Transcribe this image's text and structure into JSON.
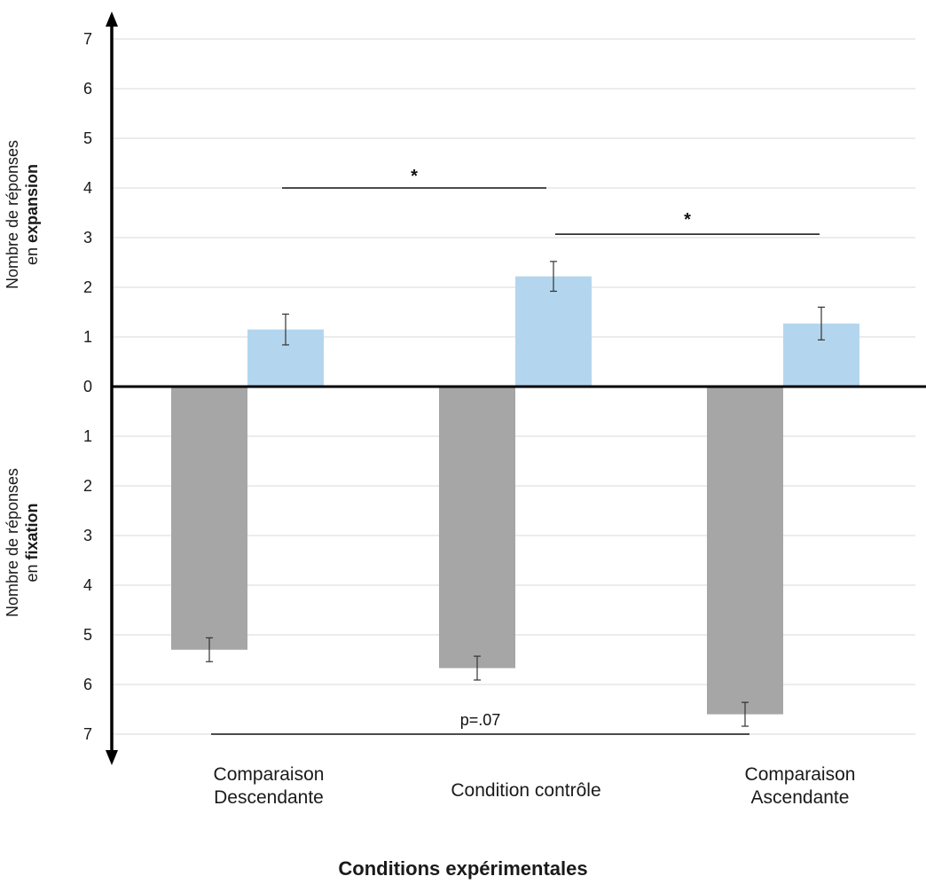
{
  "chart_data": {
    "type": "bar",
    "categories": [
      "Comparaison Descendante",
      "Condition contrôle",
      "Comparaison Ascendante"
    ],
    "category_lines": [
      [
        "Comparaison",
        "Descendante"
      ],
      [
        "Condition contrôle"
      ],
      [
        "Comparaison",
        "Ascendante"
      ]
    ],
    "series": [
      {
        "key": "fixation",
        "values": [
          5.3,
          5.67,
          6.6
        ],
        "errors": [
          0.24,
          0.24,
          0.24
        ],
        "color": "#a6a6a6",
        "direction": "down"
      },
      {
        "key": "expansion",
        "values": [
          1.15,
          2.22,
          1.27
        ],
        "errors": [
          0.31,
          0.3,
          0.33
        ],
        "color": "#b3d6ee",
        "direction": "up"
      }
    ],
    "yticks": [
      7,
      6,
      5,
      4,
      3,
      2,
      1,
      0,
      1,
      2,
      3,
      4,
      5,
      6,
      7
    ],
    "ylim": [
      -7,
      7
    ],
    "grid": true,
    "ylabel_upper": {
      "prefix": "Nombre de réponses",
      "line2": "en ",
      "bold": "expansion"
    },
    "ylabel_lower": {
      "prefix": "Nombre de réponses",
      "line2": "en ",
      "bold": "fixation"
    },
    "xlabel": "Conditions expérimentales",
    "annotations": [
      {
        "text": "*",
        "from_category": 0,
        "to_category": 1,
        "y": 4.0
      },
      {
        "text": "*",
        "from_category": 1,
        "to_category": 2,
        "y": 3.07
      },
      {
        "text": "p=.07",
        "from_category": 0,
        "to_category": 2,
        "y": -7.0
      }
    ]
  }
}
